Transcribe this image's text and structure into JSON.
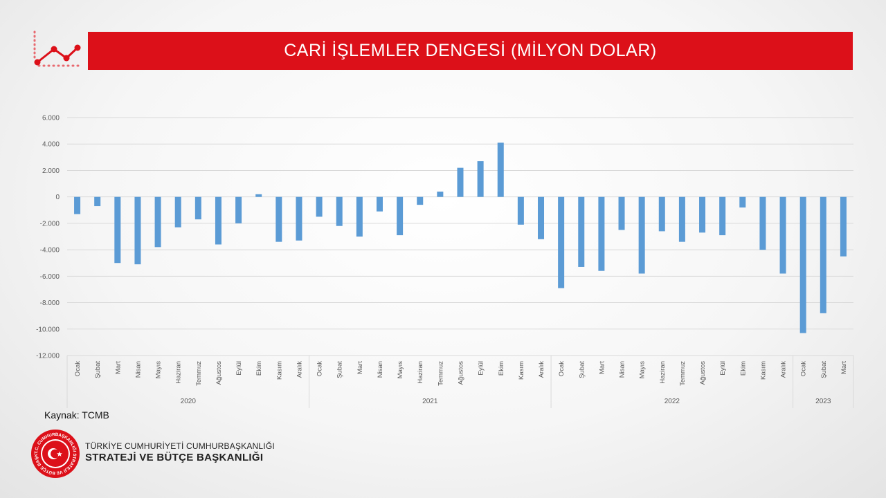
{
  "header": {
    "title": "CARİ İŞLEMLER DENGESİ (MİLYON DOLAR)"
  },
  "footer": {
    "source": "Kaynak: TCMB",
    "org_line1": "TÜRKİYE CUMHURİYETİ CUMHURBAŞKANLIĞI",
    "org_line2": "STRATEJİ VE BÜTÇE BAŞKANLIĞI",
    "seal_text": "T.C. CUMHURBAŞKANLIĞI STRATEJİ VE BÜTÇE BAŞKANLIĞI"
  },
  "icons": {
    "logo": "trend-line-icon",
    "seal": "presidency-seal-icon"
  },
  "colors": {
    "banner": "#dc1019",
    "bar": "#5b9bd5",
    "grid": "#d9d9d9"
  },
  "chart_data": {
    "type": "bar",
    "title": "CARİ İŞLEMLER DENGESİ (MİLYON DOLAR)",
    "xlabel": "",
    "ylabel": "",
    "ylim": [
      -12000,
      6000
    ],
    "yticks": [
      6000,
      4000,
      2000,
      0,
      -2000,
      -4000,
      -6000,
      -8000,
      -10000,
      -12000
    ],
    "ytick_labels": [
      "6.000",
      "4.000",
      "2.000",
      "0",
      "-2.000",
      "-4.000",
      "-6.000",
      "-8.000",
      "-10.000",
      "-12.000"
    ],
    "grid": true,
    "legend": "none",
    "groups": [
      {
        "label": "2020",
        "months": [
          "Ocak",
          "Şubat",
          "Mart",
          "Nisan",
          "Mayıs",
          "Haziran",
          "Temmuz",
          "Ağustos",
          "Eylül",
          "Ekim",
          "Kasım",
          "Aralık"
        ],
        "values": [
          -1300,
          -700,
          -5000,
          -5100,
          -3800,
          -2300,
          -1700,
          -3600,
          -2000,
          200,
          -3400,
          -3300
        ]
      },
      {
        "label": "2021",
        "months": [
          "Ocak",
          "Şubat",
          "Mart",
          "Nisan",
          "Mayıs",
          "Haziran",
          "Temmuz",
          "Ağustos",
          "Eylül",
          "Ekim",
          "Kasım",
          "Aralık"
        ],
        "values": [
          -1500,
          -2200,
          -3000,
          -1100,
          -2900,
          -600,
          400,
          2200,
          2700,
          4100,
          -2100,
          -3200
        ]
      },
      {
        "label": "2022",
        "months": [
          "Ocak",
          "Şubat",
          "Mart",
          "Nisan",
          "Mayıs",
          "Haziran",
          "Temmuz",
          "Ağustos",
          "Eylül",
          "Ekim",
          "Kasım",
          "Aralık"
        ],
        "values": [
          -6900,
          -5300,
          -5600,
          -2500,
          -5800,
          -2600,
          -3400,
          -2700,
          -2900,
          -800,
          -4000,
          -5800
        ]
      },
      {
        "label": "2023",
        "months": [
          "Ocak",
          "Şubat",
          "Mart"
        ],
        "values": [
          -10300,
          -8800,
          -4500
        ]
      }
    ]
  }
}
